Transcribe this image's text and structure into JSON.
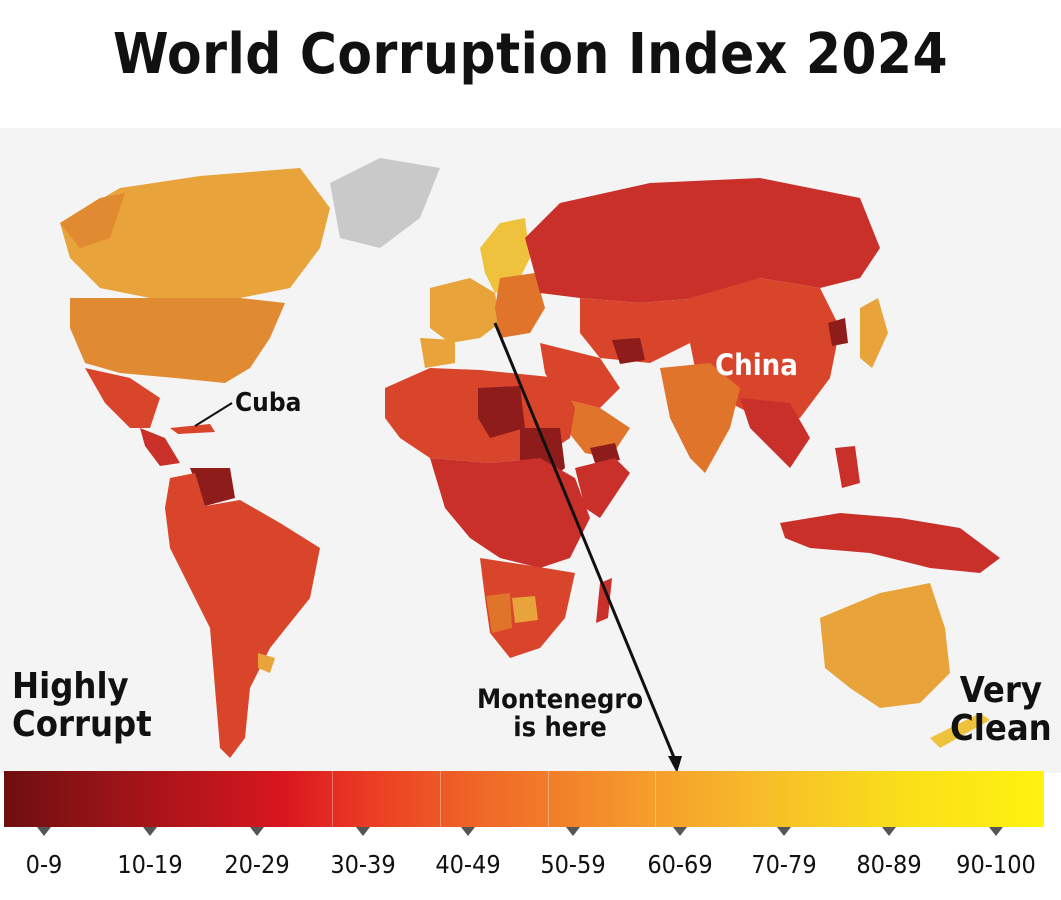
{
  "title": "World Corruption Index 2024",
  "labels": {
    "cuba": "Cuba",
    "china": "China",
    "highly_corrupt_line1": "Highly",
    "highly_corrupt_line2": "Corrupt",
    "very_clean_line1": "Very",
    "very_clean_line2": "Clean",
    "montenegro_line1": "Montenegro",
    "montenegro_line2": "is here"
  },
  "scale": {
    "ranges": [
      "0-9",
      "10-19",
      "20-29",
      "30-39",
      "40-49",
      "50-59",
      "60-69",
      "70-79",
      "80-89",
      "90-100"
    ]
  },
  "colors": {
    "ocean": "#f4f4f4",
    "no_data": "#c9c9c9",
    "very_corrupt": "#8e1c1a",
    "corrupt": "#c9302a",
    "mid_corrupt": "#d9452b",
    "mid": "#e0742b",
    "clean": "#e8a33a",
    "very_clean": "#efc23d"
  }
}
